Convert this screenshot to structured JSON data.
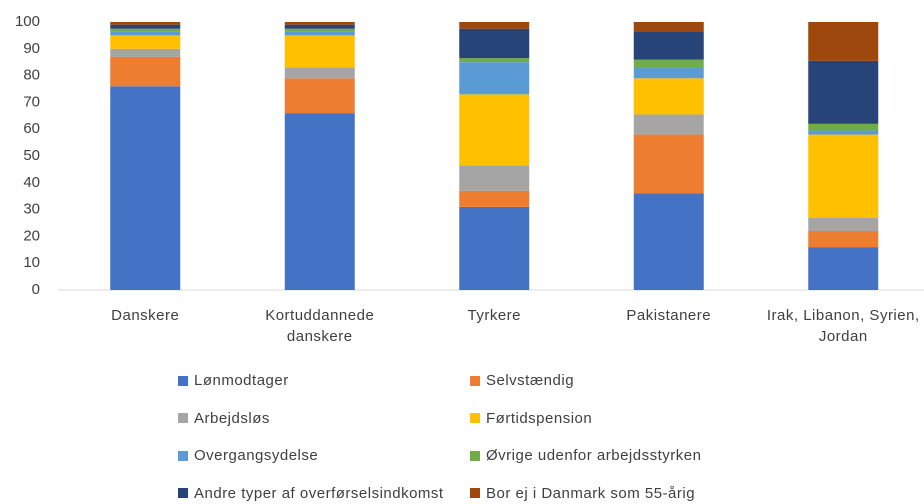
{
  "chart_data": {
    "type": "stacked_bar",
    "categories": [
      "Danskere",
      "Kortuddannede danskere",
      "Tyrkere",
      "Pakistanere",
      "Irak, Libanon, Syrien, Jordan"
    ],
    "series": [
      {
        "name": "Lønmodtager",
        "color": "#4472c4",
        "values": [
          76,
          66,
          31,
          36,
          16
        ]
      },
      {
        "name": "Selvstændig",
        "color": "#ed7d31",
        "values": [
          11,
          13,
          6,
          22,
          6
        ]
      },
      {
        "name": "Arbejdsløs",
        "color": "#a5a5a5",
        "values": [
          3,
          4,
          9.5,
          7.5,
          5
        ]
      },
      {
        "name": "Førtidspension",
        "color": "#ffc000",
        "values": [
          5,
          12,
          26.5,
          13.5,
          31
        ]
      },
      {
        "name": "Overgangsydelse",
        "color": "#5b9bd5",
        "values": [
          1.5,
          1.5,
          12,
          4,
          1.5
        ]
      },
      {
        "name": "Øvrige udenfor arbejdsstyrken",
        "color": "#70ad47",
        "values": [
          1,
          1,
          1.5,
          3,
          2.5
        ]
      },
      {
        "name": "Andre typer af overførselsindkomst",
        "color": "#264478",
        "values": [
          1.5,
          1.5,
          11,
          10.5,
          23.5
        ]
      },
      {
        "name": "Bor ej i Danmark som 55-årig",
        "color": "#9e480e",
        "values": [
          1,
          1,
          2.5,
          3.5,
          14.5
        ]
      }
    ],
    "ylim": [
      0,
      100
    ],
    "yticks": [
      0,
      10,
      20,
      30,
      40,
      50,
      60,
      70,
      80,
      90,
      100
    ],
    "grid": false,
    "legend": "bottom"
  }
}
